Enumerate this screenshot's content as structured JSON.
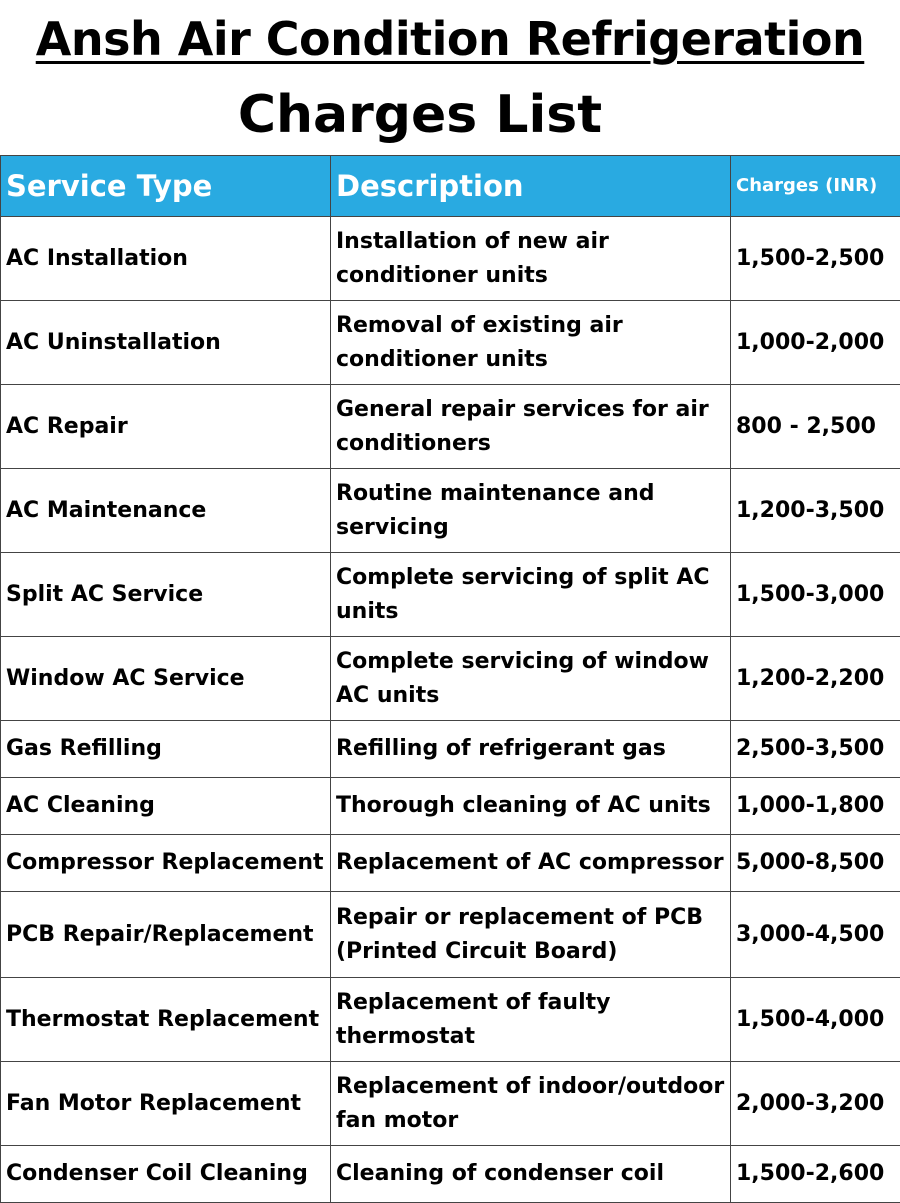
{
  "title": "Ansh Air Condition Refrigeration",
  "subtitle": "Charges List",
  "table": {
    "headers": {
      "service": "Service Type",
      "description": "Description",
      "charges": "Charges (INR)"
    },
    "header_color": "#29aae1",
    "rows": [
      {
        "service": "AC Installation",
        "description": "Installation of new air conditioner units",
        "charges": "1,500-2,500"
      },
      {
        "service": "AC Uninstallation",
        "description": "Removal of existing air conditioner units",
        "charges": "1,000-2,000"
      },
      {
        "service": "AC Repair",
        "description": "General repair services for air conditioners",
        "charges": "800 - 2,500"
      },
      {
        "service": "AC Maintenance",
        "description": "Routine maintenance and servicing",
        "charges": "1,200-3,500"
      },
      {
        "service": "Split AC Service",
        "description": "Complete servicing of split AC units",
        "charges": "1,500-3,000"
      },
      {
        "service": "Window AC Service",
        "description": "Complete servicing of window AC units",
        "charges": "1,200-2,200"
      },
      {
        "service": "Gas Refilling",
        "description": "Refilling of refrigerant gas",
        "charges": "2,500-3,500"
      },
      {
        "service": "AC Cleaning",
        "description": "Thorough cleaning of AC units",
        "charges": "1,000-1,800"
      },
      {
        "service": "Compressor Replacement",
        "description": "Replacement of AC compressor",
        "charges": "5,000-8,500"
      },
      {
        "service": "PCB Repair/Replacement",
        "description": "Repair or replacement of PCB (Printed Circuit Board)",
        "charges": "3,000-4,500"
      },
      {
        "service": "Thermostat Replacement",
        "description": "Replacement of faulty thermostat",
        "charges": "1,500-4,000"
      },
      {
        "service": "Fan Motor Replacement",
        "description": "Replacement of indoor/outdoor fan motor",
        "charges": "2,000-3,200"
      },
      {
        "service": "Condenser Coil Cleaning",
        "description": "Cleaning of condenser coil",
        "charges": "1,500-2,600"
      }
    ]
  }
}
